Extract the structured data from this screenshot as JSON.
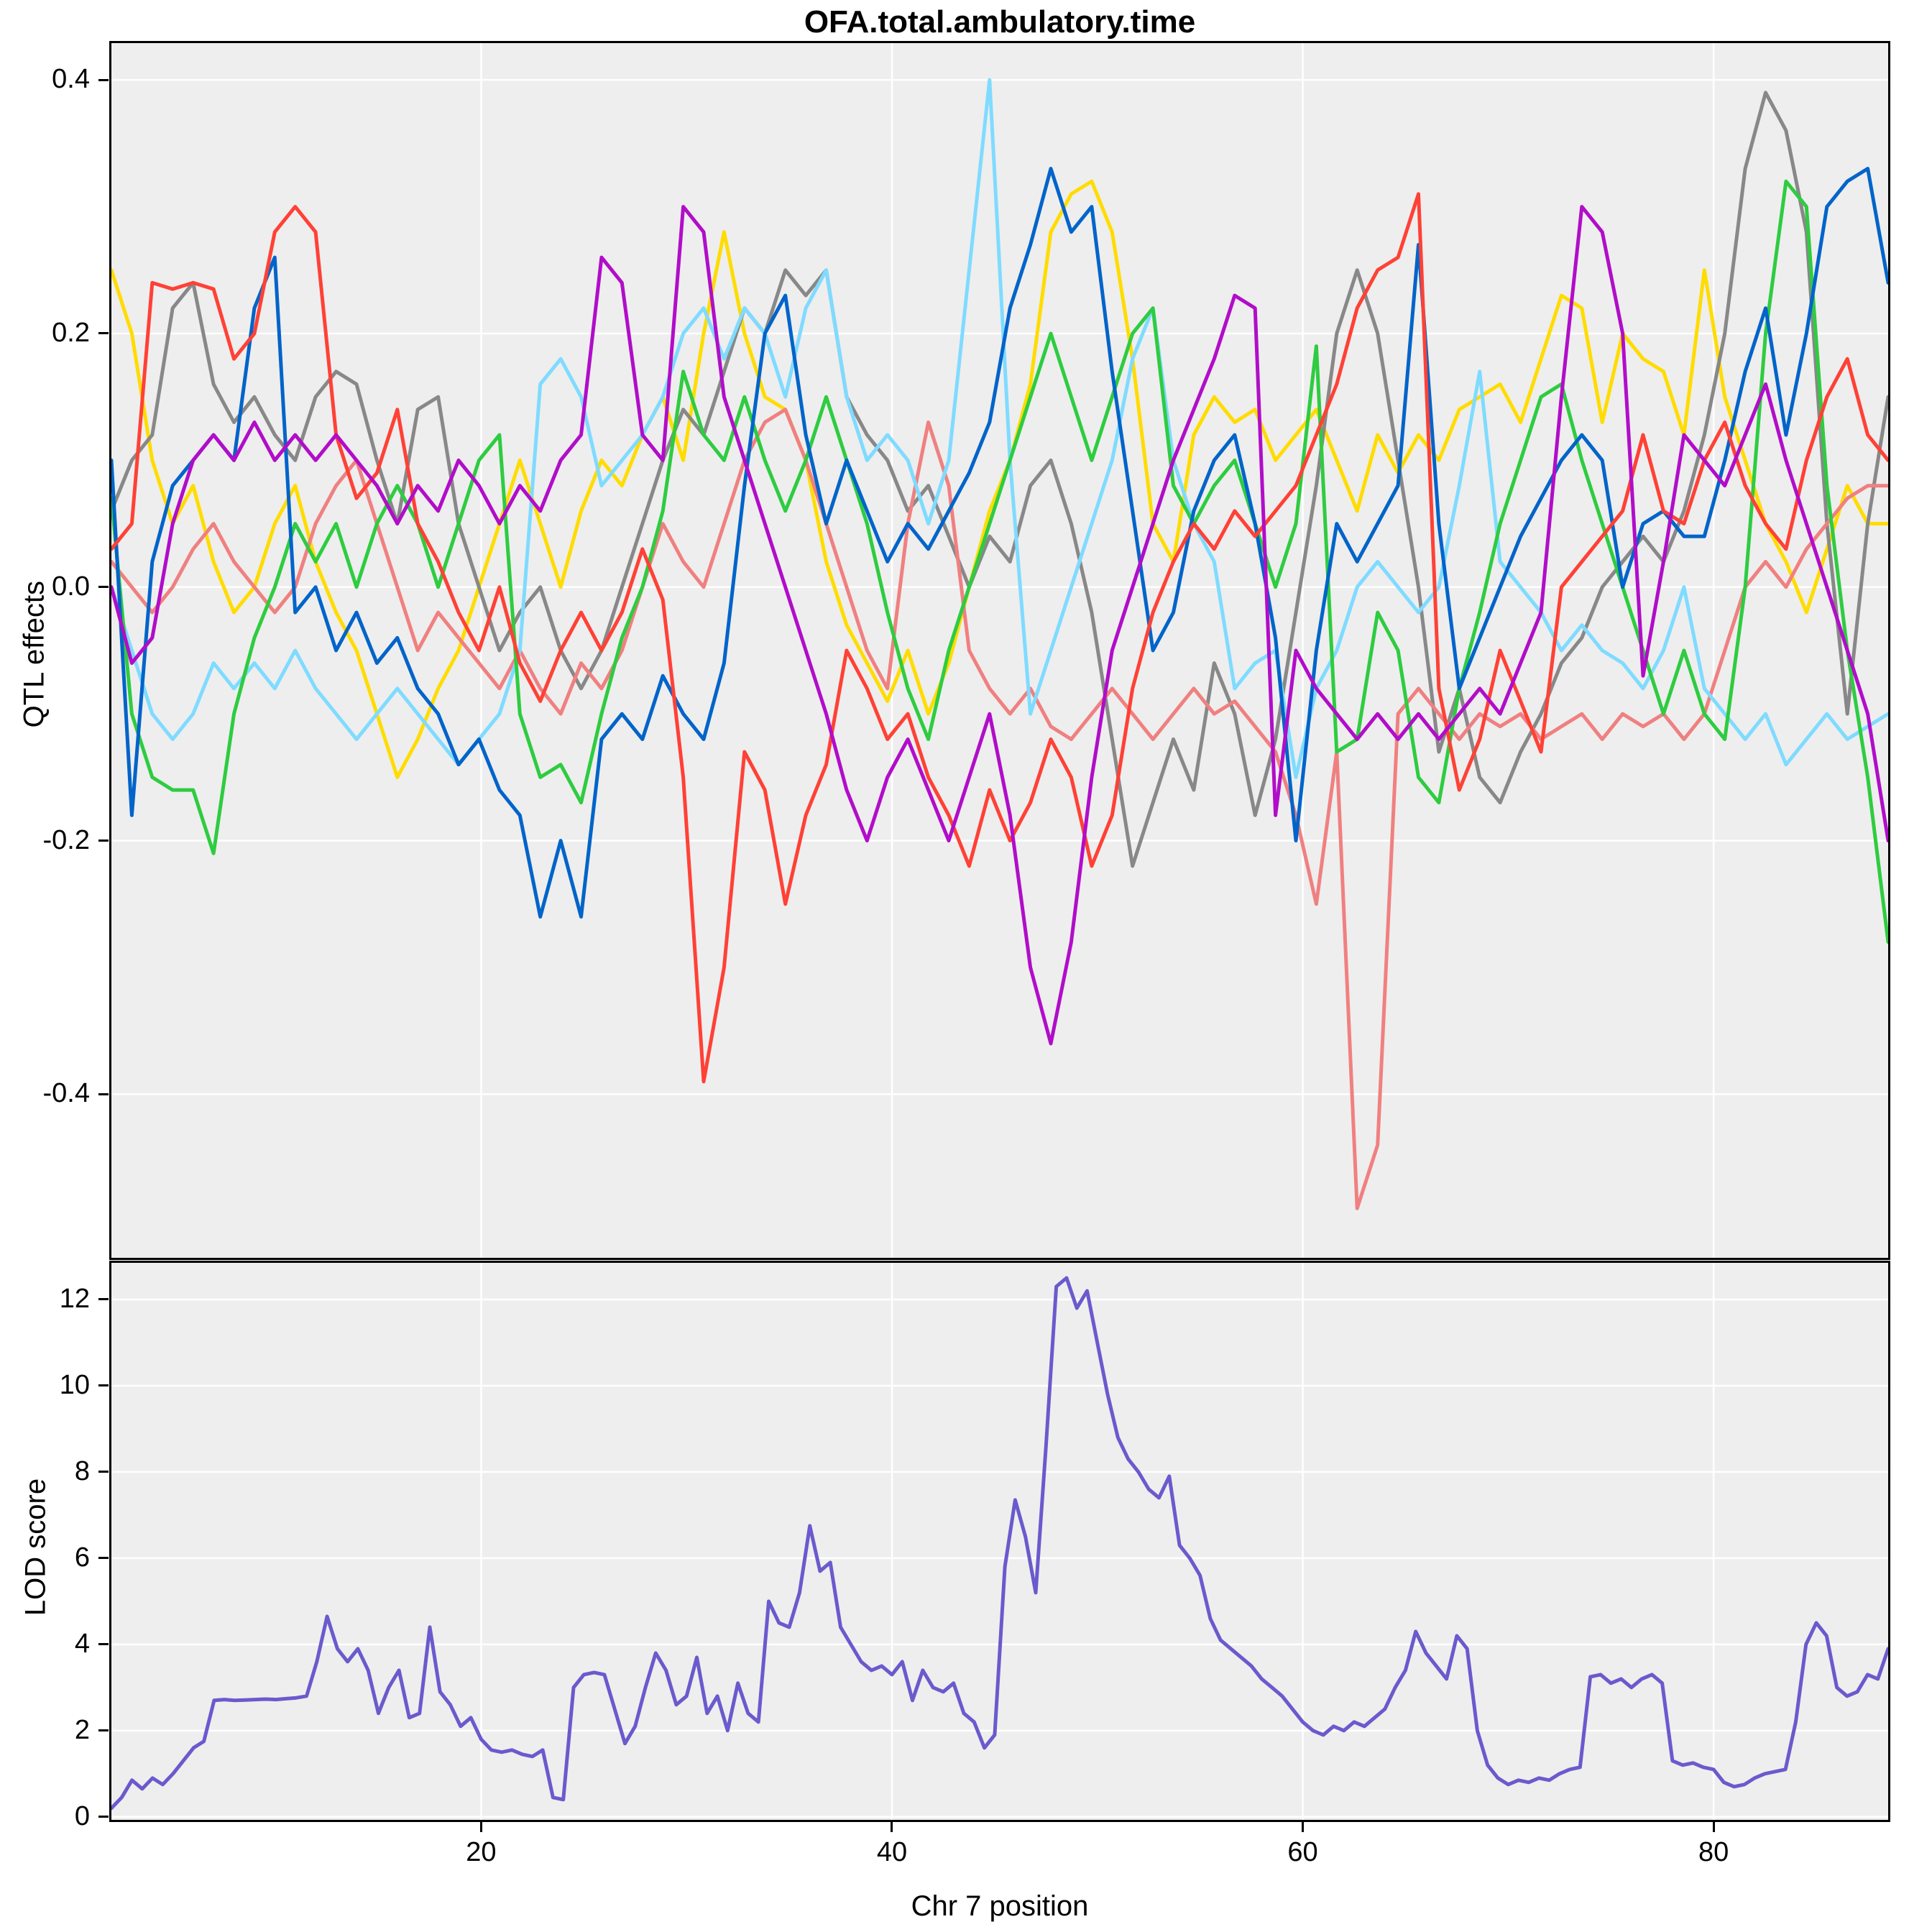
{
  "title": "OFA.total.ambulatory.time",
  "axes": {
    "qtl_ylabel": "QTL effects",
    "lod_ylabel": "LOD score",
    "xlabel": "Chr 7 position"
  },
  "style": {
    "panel_bg": "#eeeeee",
    "grid_color": "#ffffff",
    "border_color": "#000000",
    "lod_color": "#6a5acd"
  },
  "chart_data": [
    {
      "type": "line",
      "title": "OFA.total.ambulatory.time",
      "ylabel": "QTL effects",
      "xlabel": "",
      "xlim": [
        2,
        88.5
      ],
      "ylim": [
        -0.529,
        0.429
      ],
      "xticks": [
        20,
        40,
        60,
        80
      ],
      "yticks": [
        -0.4,
        -0.2,
        0.0,
        0.2,
        0.4
      ],
      "ytick_labels": [
        "-0.4",
        "-0.2",
        "0.0",
        "0.2",
        "0.4"
      ],
      "grid": true,
      "legend_position": "none",
      "x_start": 2,
      "x_end": 88.5,
      "series": [
        {
          "name": "yellow",
          "color": "#ffdc00",
          "values": [
            0.25,
            0.2,
            0.1,
            0.05,
            0.08,
            0.02,
            -0.02,
            0.0,
            0.05,
            0.08,
            0.02,
            -0.02,
            -0.05,
            -0.1,
            -0.15,
            -0.12,
            -0.08,
            -0.05,
            0.0,
            0.05,
            0.1,
            0.05,
            0.0,
            0.06,
            0.1,
            0.08,
            0.12,
            0.15,
            0.1,
            0.2,
            0.28,
            0.2,
            0.15,
            0.14,
            0.1,
            0.02,
            -0.03,
            -0.06,
            -0.09,
            -0.05,
            -0.1,
            -0.06,
            0.0,
            0.06,
            0.1,
            0.16,
            0.28,
            0.31,
            0.32,
            0.28,
            0.18,
            0.05,
            0.02,
            0.12,
            0.15,
            0.13,
            0.14,
            0.1,
            0.12,
            0.14,
            0.1,
            0.06,
            0.12,
            0.09,
            0.12,
            0.1,
            0.14,
            0.15,
            0.16,
            0.13,
            0.18,
            0.23,
            0.22,
            0.13,
            0.2,
            0.18,
            0.17,
            0.12,
            0.25,
            0.15,
            0.1,
            0.05,
            0.02,
            -0.02,
            0.03,
            0.08,
            0.05,
            0.05
          ]
        },
        {
          "name": "gray",
          "color": "#888888",
          "values": [
            0.06,
            0.1,
            0.12,
            0.22,
            0.24,
            0.16,
            0.13,
            0.15,
            0.12,
            0.1,
            0.15,
            0.17,
            0.16,
            0.1,
            0.05,
            0.14,
            0.15,
            0.05,
            0.0,
            -0.05,
            -0.02,
            0.0,
            -0.05,
            -0.08,
            -0.05,
            0.0,
            0.05,
            0.1,
            0.14,
            0.12,
            0.17,
            0.22,
            0.2,
            0.25,
            0.23,
            0.25,
            0.15,
            0.12,
            0.1,
            0.06,
            0.08,
            0.04,
            0.0,
            0.04,
            0.02,
            0.08,
            0.1,
            0.05,
            -0.02,
            -0.12,
            -0.22,
            -0.17,
            -0.12,
            -0.16,
            -0.06,
            -0.1,
            -0.18,
            -0.12,
            -0.02,
            0.08,
            0.2,
            0.25,
            0.2,
            0.1,
            0.0,
            -0.13,
            -0.08,
            -0.15,
            -0.17,
            -0.13,
            -0.1,
            -0.06,
            -0.04,
            0.0,
            0.02,
            0.04,
            0.02,
            0.06,
            0.12,
            0.2,
            0.33,
            0.39,
            0.36,
            0.28,
            0.05,
            -0.1,
            0.05,
            0.15
          ]
        },
        {
          "name": "salmon",
          "color": "#f08080",
          "values": [
            0.02,
            0.0,
            -0.02,
            0.0,
            0.03,
            0.05,
            0.02,
            0.0,
            -0.02,
            0.0,
            0.05,
            0.08,
            0.1,
            0.05,
            0.0,
            -0.05,
            -0.02,
            -0.04,
            -0.06,
            -0.08,
            -0.05,
            -0.08,
            -0.1,
            -0.06,
            -0.08,
            -0.05,
            0.0,
            0.05,
            0.02,
            0.0,
            0.05,
            0.1,
            0.13,
            0.14,
            0.1,
            0.05,
            0.0,
            -0.05,
            -0.08,
            0.05,
            0.13,
            0.08,
            -0.05,
            -0.08,
            -0.1,
            -0.08,
            -0.11,
            -0.12,
            -0.1,
            -0.08,
            -0.1,
            -0.12,
            -0.1,
            -0.08,
            -0.1,
            -0.09,
            -0.11,
            -0.13,
            -0.18,
            -0.25,
            -0.13,
            -0.49,
            -0.44,
            -0.1,
            -0.08,
            -0.1,
            -0.12,
            -0.1,
            -0.11,
            -0.1,
            -0.12,
            -0.11,
            -0.1,
            -0.12,
            -0.1,
            -0.11,
            -0.1,
            -0.12,
            -0.1,
            -0.05,
            0.0,
            0.02,
            0.0,
            0.03,
            0.05,
            0.07,
            0.08,
            0.08
          ]
        },
        {
          "name": "skyblue",
          "color": "#7fdbff",
          "values": [
            0.0,
            -0.05,
            -0.1,
            -0.12,
            -0.1,
            -0.06,
            -0.08,
            -0.06,
            -0.08,
            -0.05,
            -0.08,
            -0.1,
            -0.12,
            -0.1,
            -0.08,
            -0.1,
            -0.12,
            -0.14,
            -0.12,
            -0.1,
            -0.05,
            0.16,
            0.18,
            0.15,
            0.08,
            0.1,
            0.12,
            0.15,
            0.2,
            0.22,
            0.18,
            0.22,
            0.2,
            0.15,
            0.22,
            0.25,
            0.15,
            0.1,
            0.12,
            0.1,
            0.05,
            0.1,
            0.25,
            0.4,
            0.1,
            -0.1,
            -0.05,
            0.0,
            0.05,
            0.1,
            0.18,
            0.22,
            0.1,
            0.05,
            0.02,
            -0.08,
            -0.06,
            -0.05,
            -0.15,
            -0.08,
            -0.05,
            0.0,
            0.02,
            0.0,
            -0.02,
            0.0,
            0.08,
            0.17,
            0.02,
            0.0,
            -0.02,
            -0.05,
            -0.03,
            -0.05,
            -0.06,
            -0.08,
            -0.05,
            0.0,
            -0.08,
            -0.1,
            -0.12,
            -0.1,
            -0.14,
            -0.12,
            -0.1,
            -0.12,
            -0.11,
            -0.1
          ]
        },
        {
          "name": "green",
          "color": "#2ecc40",
          "values": [
            0.07,
            -0.1,
            -0.15,
            -0.16,
            -0.16,
            -0.21,
            -0.1,
            -0.04,
            0.0,
            0.05,
            0.02,
            0.05,
            0.0,
            0.05,
            0.08,
            0.05,
            0.0,
            0.05,
            0.1,
            0.12,
            -0.1,
            -0.15,
            -0.14,
            -0.17,
            -0.1,
            -0.04,
            0.0,
            0.06,
            0.17,
            0.12,
            0.1,
            0.15,
            0.1,
            0.06,
            0.1,
            0.15,
            0.1,
            0.05,
            -0.02,
            -0.08,
            -0.12,
            -0.05,
            0.0,
            0.05,
            0.1,
            0.15,
            0.2,
            0.15,
            0.1,
            0.15,
            0.2,
            0.22,
            0.08,
            0.05,
            0.08,
            0.1,
            0.05,
            0.0,
            0.05,
            0.19,
            -0.13,
            -0.12,
            -0.02,
            -0.05,
            -0.15,
            -0.17,
            -0.08,
            -0.02,
            0.05,
            0.1,
            0.15,
            0.16,
            0.1,
            0.05,
            0.0,
            -0.05,
            -0.1,
            -0.05,
            -0.1,
            -0.12,
            0.0,
            0.2,
            0.32,
            0.3,
            0.08,
            -0.05,
            -0.15,
            -0.28
          ]
        },
        {
          "name": "blue",
          "color": "#0064c9",
          "values": [
            0.1,
            -0.18,
            0.02,
            0.08,
            0.1,
            0.12,
            0.1,
            0.22,
            0.26,
            -0.02,
            0.0,
            -0.05,
            -0.02,
            -0.06,
            -0.04,
            -0.08,
            -0.1,
            -0.14,
            -0.12,
            -0.16,
            -0.18,
            -0.26,
            -0.2,
            -0.26,
            -0.12,
            -0.1,
            -0.12,
            -0.07,
            -0.1,
            -0.12,
            -0.06,
            0.08,
            0.2,
            0.23,
            0.12,
            0.05,
            0.1,
            0.06,
            0.02,
            0.05,
            0.03,
            0.06,
            0.09,
            0.13,
            0.22,
            0.27,
            0.33,
            0.28,
            0.3,
            0.17,
            0.06,
            -0.05,
            -0.02,
            0.06,
            0.1,
            0.12,
            0.05,
            -0.04,
            -0.2,
            -0.05,
            0.05,
            0.02,
            0.05,
            0.08,
            0.27,
            0.05,
            -0.08,
            -0.04,
            0.0,
            0.04,
            0.07,
            0.1,
            0.12,
            0.1,
            0.0,
            0.05,
            0.06,
            0.04,
            0.04,
            0.1,
            0.17,
            0.22,
            0.12,
            0.2,
            0.3,
            0.32,
            0.33,
            0.24
          ]
        },
        {
          "name": "red",
          "color": "#ff4136",
          "values": [
            0.03,
            0.05,
            0.24,
            0.235,
            0.24,
            0.235,
            0.18,
            0.2,
            0.28,
            0.3,
            0.28,
            0.12,
            0.07,
            0.09,
            0.14,
            0.05,
            0.02,
            -0.02,
            -0.05,
            0.0,
            -0.06,
            -0.09,
            -0.05,
            -0.02,
            -0.05,
            -0.02,
            0.03,
            -0.01,
            -0.15,
            -0.39,
            -0.3,
            -0.13,
            -0.16,
            -0.25,
            -0.18,
            -0.14,
            -0.05,
            -0.08,
            -0.12,
            -0.1,
            -0.15,
            -0.18,
            -0.22,
            -0.16,
            -0.2,
            -0.17,
            -0.12,
            -0.15,
            -0.22,
            -0.18,
            -0.08,
            -0.02,
            0.02,
            0.05,
            0.03,
            0.06,
            0.04,
            0.06,
            0.08,
            0.12,
            0.16,
            0.22,
            0.25,
            0.26,
            0.31,
            -0.08,
            -0.16,
            -0.12,
            -0.05,
            -0.09,
            -0.13,
            0.0,
            0.02,
            0.04,
            0.06,
            0.12,
            0.06,
            0.05,
            0.1,
            0.13,
            0.08,
            0.05,
            0.03,
            0.1,
            0.15,
            0.18,
            0.12,
            0.1
          ]
        },
        {
          "name": "purple",
          "color": "#b10dc9",
          "values": [
            0.0,
            -0.06,
            -0.04,
            0.05,
            0.1,
            0.12,
            0.1,
            0.13,
            0.1,
            0.12,
            0.1,
            0.12,
            0.1,
            0.08,
            0.05,
            0.08,
            0.06,
            0.1,
            0.08,
            0.05,
            0.08,
            0.06,
            0.1,
            0.12,
            0.26,
            0.24,
            0.12,
            0.1,
            0.3,
            0.28,
            0.15,
            0.1,
            0.05,
            0.0,
            -0.05,
            -0.1,
            -0.16,
            -0.2,
            -0.15,
            -0.12,
            -0.16,
            -0.2,
            -0.15,
            -0.1,
            -0.18,
            -0.3,
            -0.36,
            -0.28,
            -0.15,
            -0.05,
            0.0,
            0.05,
            0.1,
            0.14,
            0.18,
            0.23,
            0.22,
            -0.18,
            -0.05,
            -0.08,
            -0.1,
            -0.12,
            -0.1,
            -0.12,
            -0.1,
            -0.12,
            -0.1,
            -0.08,
            -0.1,
            -0.06,
            -0.02,
            0.15,
            0.3,
            0.28,
            0.2,
            -0.07,
            0.02,
            0.12,
            0.1,
            0.08,
            0.12,
            0.16,
            0.1,
            0.05,
            0.0,
            -0.05,
            -0.1,
            -0.2
          ]
        }
      ]
    },
    {
      "type": "line",
      "title": "",
      "ylabel": "LOD score",
      "xlabel": "Chr 7 position",
      "xlim": [
        2,
        88.5
      ],
      "ylim": [
        -0.07,
        12.85
      ],
      "xticks": [
        20,
        40,
        60,
        80
      ],
      "yticks": [
        0,
        2,
        4,
        6,
        8,
        10,
        12
      ],
      "ytick_labels": [
        "0",
        "2",
        "4",
        "6",
        "8",
        "10",
        "12"
      ],
      "grid": true,
      "legend_position": "none",
      "x_start": 2,
      "x_end": 88.5,
      "series": [
        {
          "name": "LOD",
          "color": "#6a5acd",
          "values": [
            0.2,
            0.45,
            0.85,
            0.65,
            0.9,
            0.75,
            1.0,
            1.3,
            1.6,
            1.75,
            2.7,
            2.72,
            2.7,
            2.71,
            2.72,
            2.73,
            2.72,
            2.74,
            2.76,
            2.8,
            3.6,
            4.65,
            3.9,
            3.6,
            3.9,
            3.4,
            2.4,
            3.0,
            3.4,
            2.3,
            2.4,
            4.4,
            2.9,
            2.6,
            2.1,
            2.3,
            1.8,
            1.55,
            1.5,
            1.55,
            1.45,
            1.4,
            1.55,
            0.45,
            0.4,
            3.0,
            3.3,
            3.35,
            3.3,
            2.5,
            1.7,
            2.1,
            3.0,
            3.8,
            3.4,
            2.6,
            2.8,
            3.7,
            2.4,
            2.8,
            2.0,
            3.1,
            2.4,
            2.2,
            5.0,
            4.5,
            4.4,
            5.2,
            6.75,
            5.7,
            5.9,
            4.4,
            4.0,
            3.6,
            3.4,
            3.5,
            3.3,
            3.6,
            2.7,
            3.4,
            3.0,
            2.9,
            3.1,
            2.4,
            2.2,
            1.6,
            1.9,
            5.8,
            7.35,
            6.5,
            5.2,
            8.6,
            12.3,
            12.5,
            11.8,
            12.2,
            11.0,
            9.8,
            8.8,
            8.3,
            8.0,
            7.6,
            7.4,
            7.9,
            6.3,
            6.0,
            5.6,
            4.6,
            4.1,
            3.9,
            3.7,
            3.5,
            3.2,
            3.0,
            2.8,
            2.5,
            2.2,
            2.0,
            1.9,
            2.1,
            2.0,
            2.2,
            2.1,
            2.3,
            2.5,
            3.0,
            3.4,
            4.3,
            3.8,
            3.5,
            3.2,
            4.2,
            3.9,
            2.0,
            1.2,
            0.9,
            0.75,
            0.85,
            0.8,
            0.9,
            0.85,
            1.0,
            1.1,
            1.15,
            3.25,
            3.3,
            3.1,
            3.2,
            3.0,
            3.2,
            3.3,
            3.1,
            1.3,
            1.2,
            1.25,
            1.15,
            1.1,
            0.8,
            0.7,
            0.75,
            0.9,
            1.0,
            1.05,
            1.1,
            2.2,
            4.0,
            4.5,
            4.2,
            3.0,
            2.8,
            2.9,
            3.3,
            3.2,
            3.9
          ]
        }
      ]
    }
  ]
}
